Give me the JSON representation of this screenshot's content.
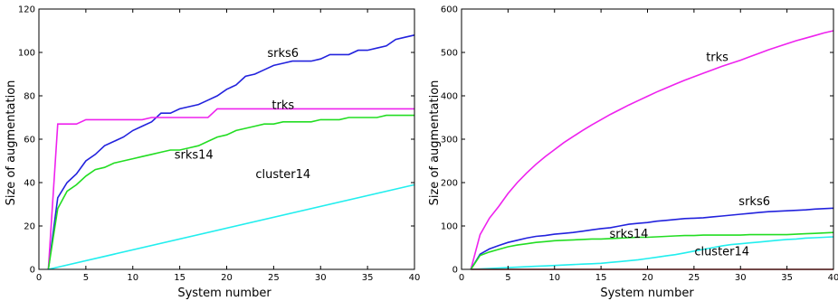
{
  "chart_data": [
    {
      "type": "line",
      "xlabel": "System number",
      "ylabel": "Size of augmentation",
      "xlim": [
        0,
        40
      ],
      "ylim": [
        0,
        120
      ],
      "xticks": [
        0,
        5,
        10,
        15,
        20,
        25,
        30,
        35,
        40
      ],
      "yticks": [
        0,
        20,
        40,
        60,
        80,
        100,
        120
      ],
      "grid": false,
      "series": [
        {
          "name": "srks6",
          "color": "#2222dd",
          "label_at": [
            26,
            98
          ],
          "x": [
            1,
            2,
            3,
            4,
            5,
            6,
            7,
            8,
            9,
            10,
            11,
            12,
            13,
            14,
            15,
            16,
            17,
            18,
            19,
            20,
            21,
            22,
            23,
            24,
            25,
            26,
            27,
            28,
            29,
            30,
            31,
            32,
            33,
            34,
            35,
            36,
            37,
            38,
            39,
            40
          ],
          "y": [
            0,
            33,
            40,
            44,
            50,
            53,
            57,
            59,
            61,
            64,
            66,
            68,
            72,
            72,
            74,
            75,
            76,
            78,
            80,
            83,
            85,
            89,
            90,
            92,
            94,
            95,
            96,
            96,
            96,
            97,
            99,
            99,
            99,
            101,
            101,
            102,
            103,
            106,
            107,
            108
          ]
        },
        {
          "name": "trks",
          "color": "#ee22ee",
          "label_at": [
            26,
            74
          ],
          "x": [
            1,
            2,
            3,
            4,
            5,
            6,
            7,
            8,
            9,
            10,
            11,
            12,
            13,
            14,
            15,
            16,
            17,
            18,
            19,
            20,
            21,
            22,
            23,
            24,
            25,
            26,
            27,
            28,
            29,
            30,
            31,
            32,
            33,
            34,
            35,
            36,
            37,
            38,
            39,
            40
          ],
          "y": [
            0,
            67,
            67,
            67,
            69,
            69,
            69,
            69,
            69,
            69,
            69,
            70,
            70,
            70,
            70,
            70,
            70,
            70,
            74,
            74,
            74,
            74,
            74,
            74,
            74,
            74,
            74,
            74,
            74,
            74,
            74,
            74,
            74,
            74,
            74,
            74,
            74,
            74,
            74,
            74
          ]
        },
        {
          "name": "srks14",
          "color": "#22dd22",
          "label_at": [
            16.5,
            51
          ],
          "x": [
            1,
            2,
            3,
            4,
            5,
            6,
            7,
            8,
            9,
            10,
            11,
            12,
            13,
            14,
            15,
            16,
            17,
            18,
            19,
            20,
            21,
            22,
            23,
            24,
            25,
            26,
            27,
            28,
            29,
            30,
            31,
            32,
            33,
            34,
            35,
            36,
            37,
            38,
            39,
            40
          ],
          "y": [
            0,
            28,
            36,
            39,
            43,
            46,
            47,
            49,
            50,
            51,
            52,
            53,
            54,
            55,
            55,
            56,
            57,
            59,
            61,
            62,
            64,
            65,
            66,
            67,
            67,
            68,
            68,
            68,
            68,
            69,
            69,
            69,
            70,
            70,
            70,
            70,
            71,
            71,
            71,
            71
          ]
        },
        {
          "name": "cluster14",
          "color": "#22eeee",
          "label_at": [
            26,
            42
          ],
          "x": [
            1,
            40
          ],
          "y": [
            0,
            39
          ]
        }
      ]
    },
    {
      "type": "line",
      "xlabel": "System number",
      "ylabel": "Size of augmentation",
      "xlim": [
        0,
        40
      ],
      "ylim": [
        0,
        600
      ],
      "xticks": [
        0,
        5,
        10,
        15,
        20,
        25,
        30,
        35,
        40
      ],
      "yticks": [
        0,
        100,
        200,
        300,
        400,
        500,
        600
      ],
      "grid": false,
      "series": [
        {
          "name": "trks",
          "color": "#ee22ee",
          "label_at": [
            27.5,
            480
          ],
          "x": [
            1,
            2,
            3,
            4,
            5,
            6,
            7,
            8,
            9,
            10,
            11,
            12,
            13,
            14,
            15,
            16,
            17,
            18,
            19,
            20,
            21,
            22,
            23,
            24,
            25,
            26,
            27,
            28,
            29,
            30,
            31,
            32,
            33,
            34,
            35,
            36,
            37,
            38,
            39,
            40
          ],
          "y": [
            0,
            80,
            118,
            145,
            175,
            200,
            222,
            242,
            260,
            276,
            292,
            306,
            320,
            333,
            345,
            357,
            368,
            379,
            389,
            399,
            409,
            418,
            427,
            436,
            444,
            452,
            460,
            468,
            475,
            482,
            490,
            498,
            506,
            513,
            520,
            527,
            533,
            539,
            545,
            550
          ]
        },
        {
          "name": "srks6",
          "color": "#2222dd",
          "label_at": [
            31.5,
            148
          ],
          "x": [
            1,
            2,
            3,
            4,
            5,
            6,
            7,
            8,
            9,
            10,
            11,
            12,
            13,
            14,
            15,
            16,
            17,
            18,
            19,
            20,
            21,
            22,
            23,
            24,
            25,
            26,
            27,
            28,
            29,
            30,
            31,
            32,
            33,
            34,
            35,
            36,
            37,
            38,
            39,
            40
          ],
          "y": [
            0,
            35,
            47,
            55,
            62,
            67,
            72,
            76,
            78,
            81,
            83,
            85,
            88,
            91,
            94,
            96,
            100,
            104,
            106,
            108,
            111,
            113,
            115,
            117,
            118,
            119,
            121,
            123,
            125,
            127,
            129,
            131,
            133,
            134,
            135,
            136,
            137,
            139,
            140,
            141
          ]
        },
        {
          "name": "srks14",
          "color": "#22dd22",
          "label_at": [
            18,
            73
          ],
          "x": [
            1,
            2,
            3,
            4,
            5,
            6,
            7,
            8,
            9,
            10,
            11,
            12,
            13,
            14,
            15,
            16,
            17,
            18,
            19,
            20,
            21,
            22,
            23,
            24,
            25,
            26,
            27,
            28,
            29,
            30,
            31,
            32,
            33,
            34,
            35,
            36,
            37,
            38,
            39,
            40
          ],
          "y": [
            0,
            32,
            40,
            46,
            52,
            56,
            59,
            62,
            64,
            66,
            67,
            68,
            69,
            70,
            70,
            71,
            72,
            73,
            74,
            74,
            75,
            76,
            77,
            78,
            78,
            79,
            79,
            79,
            79,
            79,
            80,
            80,
            80,
            80,
            80,
            81,
            82,
            83,
            84,
            85
          ]
        },
        {
          "name": "cluster14",
          "color": "#22eeee",
          "label_at": [
            28,
            32
          ],
          "x": [
            1,
            2,
            3,
            4,
            5,
            6,
            7,
            8,
            9,
            10,
            11,
            12,
            13,
            14,
            15,
            16,
            17,
            18,
            19,
            20,
            21,
            22,
            23,
            24,
            25,
            26,
            27,
            28,
            29,
            30,
            31,
            32,
            33,
            34,
            35,
            36,
            37,
            38,
            39,
            40
          ],
          "y": [
            0,
            1,
            2,
            3,
            4,
            5,
            6,
            7,
            8,
            9,
            10,
            11,
            12,
            13,
            14,
            16,
            18,
            20,
            22,
            25,
            28,
            31,
            34,
            38,
            42,
            46,
            50,
            54,
            57,
            59,
            61,
            63,
            65,
            67,
            69,
            70,
            72,
            73,
            74,
            75
          ]
        },
        {
          "name": "",
          "color": "#cc2222",
          "label_at": null,
          "x": [
            1,
            40
          ],
          "y": [
            0,
            0
          ]
        }
      ]
    }
  ]
}
